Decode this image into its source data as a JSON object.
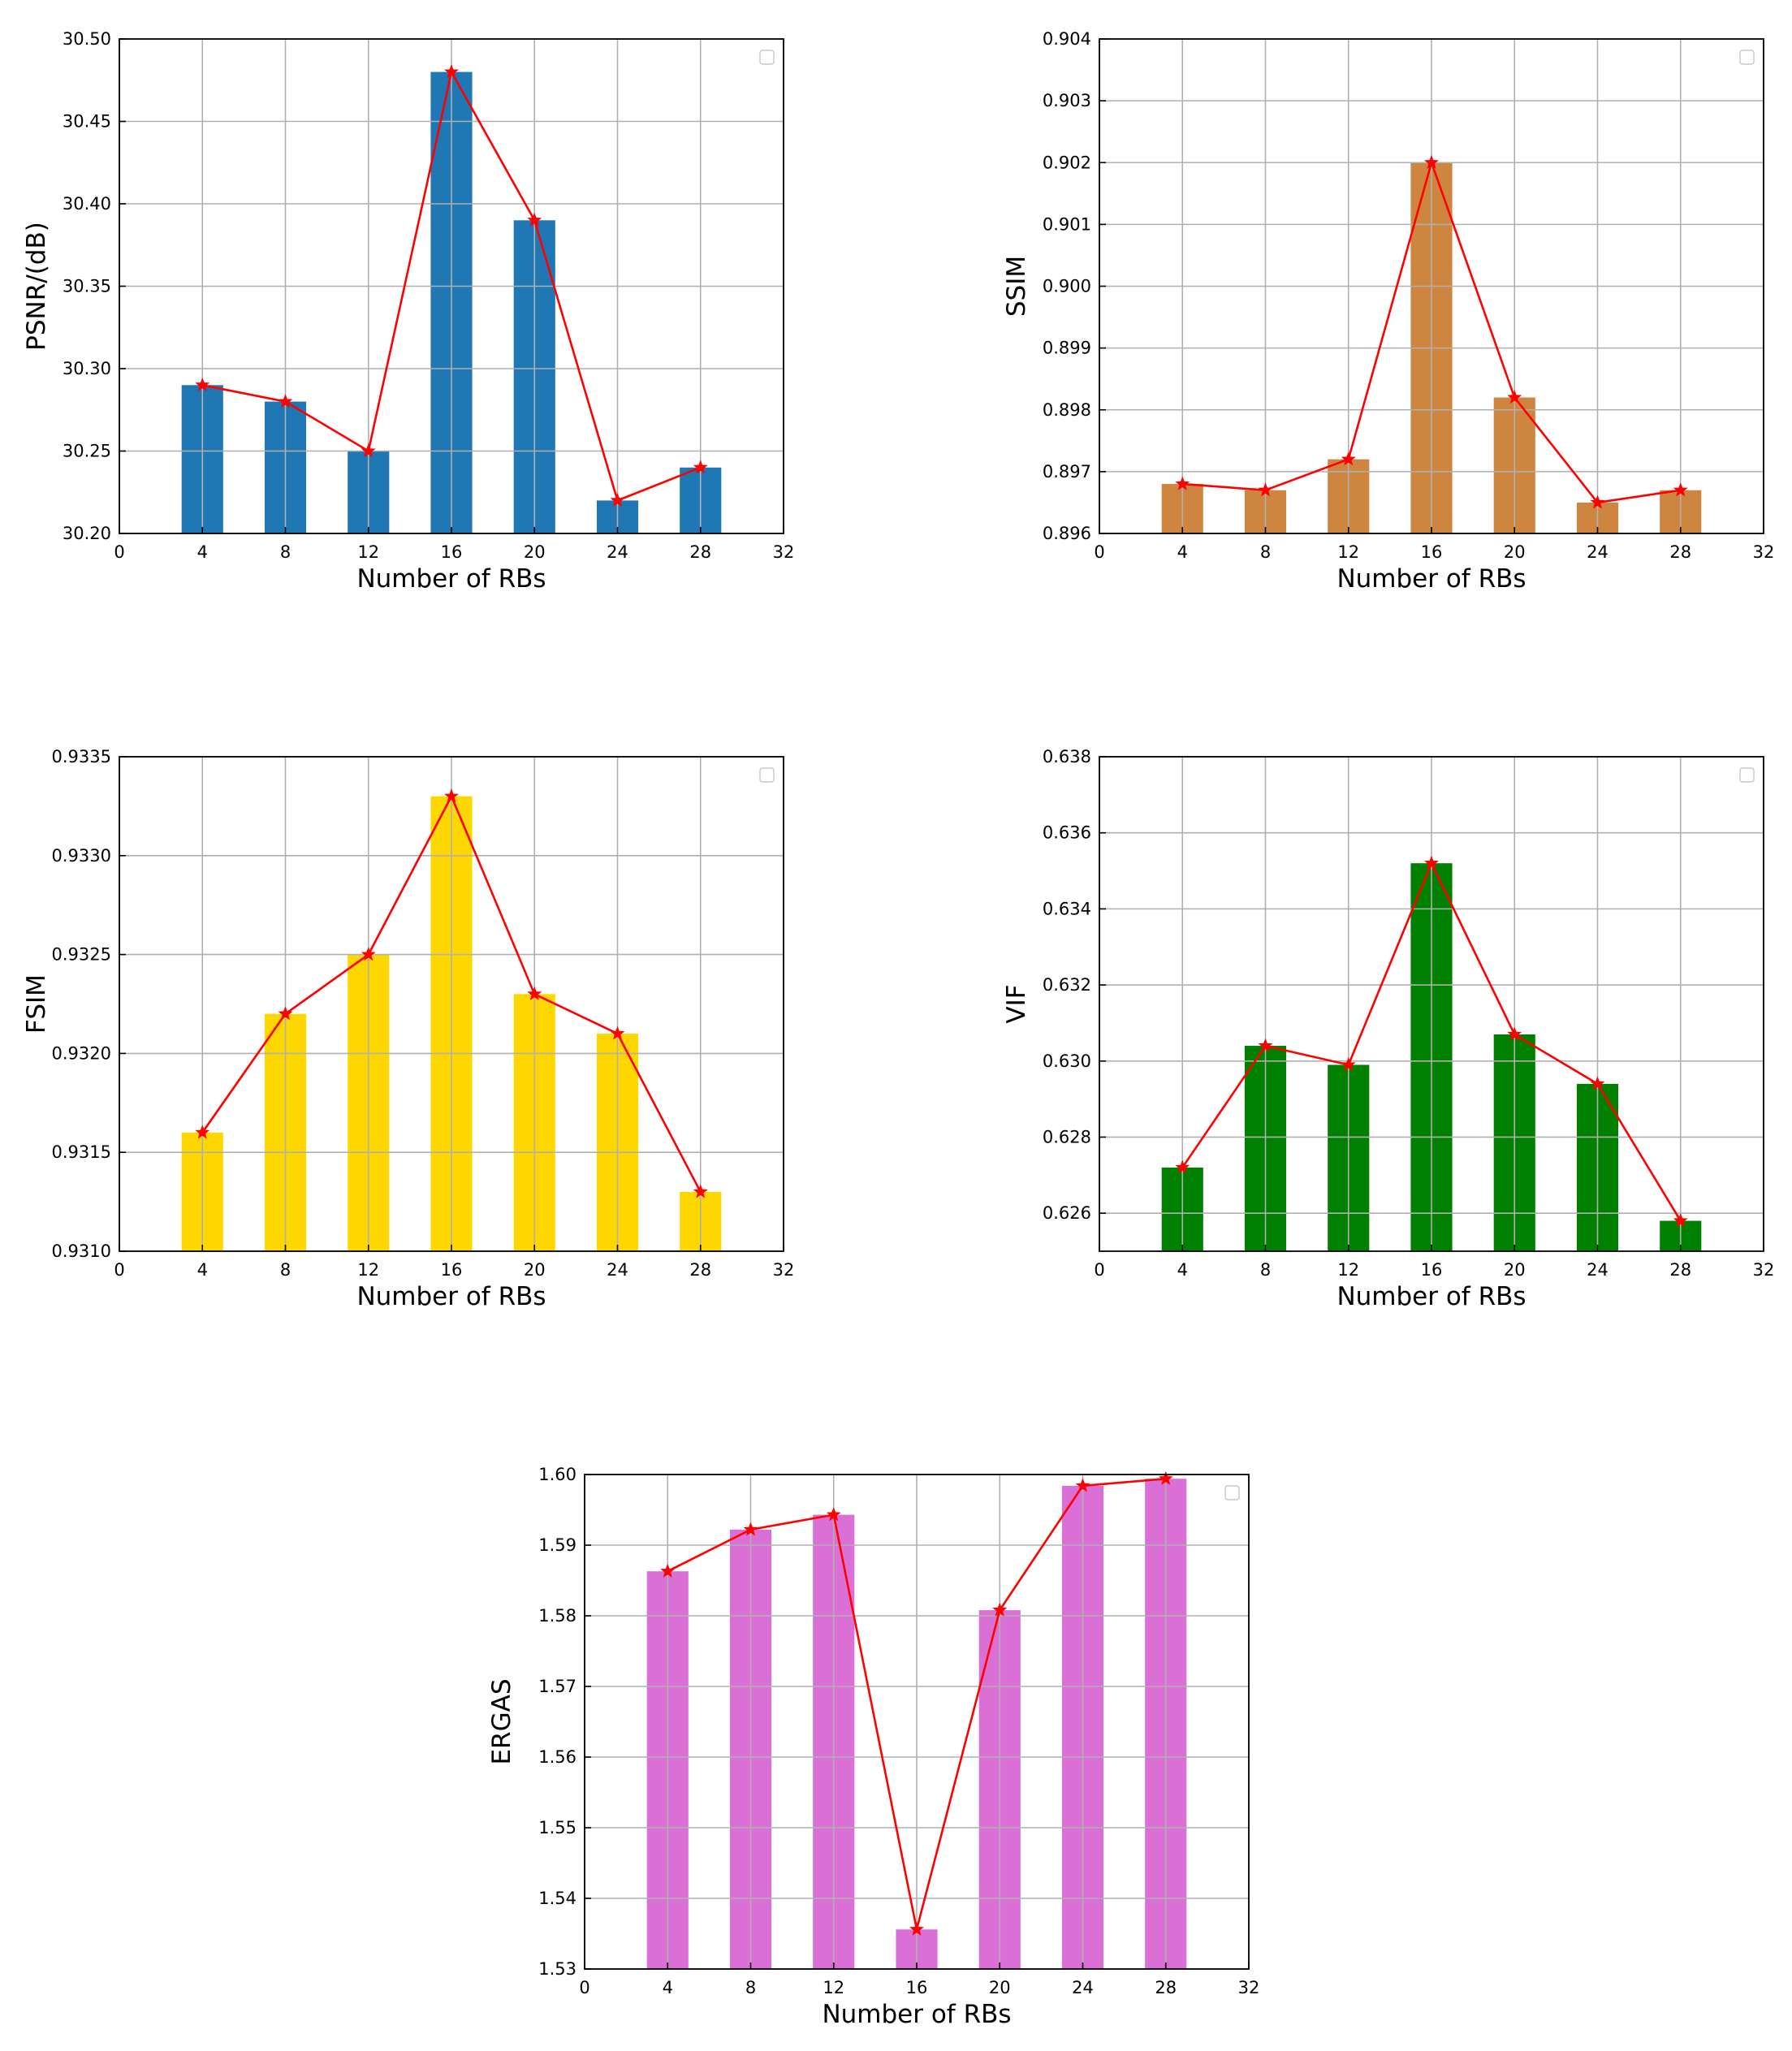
{
  "chart_data": [
    {
      "type": "bar",
      "x": [
        4,
        8,
        12,
        16,
        20,
        24,
        28
      ],
      "values": [
        30.29,
        30.28,
        30.25,
        30.48,
        30.39,
        30.22,
        30.24
      ],
      "bar_color": "#1f77b4",
      "line_color": "#ff0000",
      "xlabel": "Number of RBs",
      "ylabel": "PSNR/(dB)",
      "xlim": [
        0,
        32
      ],
      "ylim": [
        30.2,
        30.5
      ],
      "xticks": [
        0,
        4,
        8,
        12,
        16,
        20,
        24,
        28,
        32
      ],
      "xtick_labels": [
        "0",
        "4",
        "8",
        "12",
        "16",
        "20",
        "24",
        "28",
        "32"
      ],
      "yticks": [
        30.2,
        30.25,
        30.3,
        30.35,
        30.4,
        30.45,
        30.5
      ],
      "ytick_labels": [
        "30.20",
        "30.25",
        "30.30",
        "30.35",
        "30.40",
        "30.45",
        "30.50"
      ],
      "grid": true,
      "legend": "top-right"
    },
    {
      "type": "bar",
      "x": [
        4,
        8,
        12,
        16,
        20,
        24,
        28
      ],
      "values": [
        0.8968,
        0.8967,
        0.8972,
        0.902,
        0.8982,
        0.8965,
        0.8967
      ],
      "bar_color": "#cd853f",
      "line_color": "#ff0000",
      "xlabel": "Number of RBs",
      "ylabel": "SSIM",
      "xlim": [
        0,
        32
      ],
      "ylim": [
        0.896,
        0.904
      ],
      "xticks": [
        0,
        4,
        8,
        12,
        16,
        20,
        24,
        28,
        32
      ],
      "xtick_labels": [
        "0",
        "4",
        "8",
        "12",
        "16",
        "20",
        "24",
        "28",
        "32"
      ],
      "yticks": [
        0.896,
        0.897,
        0.898,
        0.899,
        0.9,
        0.901,
        0.902,
        0.903,
        0.904
      ],
      "ytick_labels": [
        "0.896",
        "0.897",
        "0.898",
        "0.899",
        "0.900",
        "0.901",
        "0.902",
        "0.903",
        "0.904"
      ],
      "grid": true,
      "legend": "top-right"
    },
    {
      "type": "bar",
      "x": [
        4,
        8,
        12,
        16,
        20,
        24,
        28
      ],
      "values": [
        0.9316,
        0.9322,
        0.9325,
        0.9333,
        0.9323,
        0.9321,
        0.9313
      ],
      "bar_color": "#ffd700",
      "line_color": "#ff0000",
      "xlabel": "Number of RBs",
      "ylabel": "FSIM",
      "xlim": [
        0,
        32
      ],
      "ylim": [
        0.931,
        0.9335
      ],
      "xticks": [
        0,
        4,
        8,
        12,
        16,
        20,
        24,
        28,
        32
      ],
      "xtick_labels": [
        "0",
        "4",
        "8",
        "12",
        "16",
        "20",
        "24",
        "28",
        "32"
      ],
      "yticks": [
        0.931,
        0.9315,
        0.932,
        0.9325,
        0.933,
        0.9335
      ],
      "ytick_labels": [
        "0.9310",
        "0.9315",
        "0.9320",
        "0.9325",
        "0.9330",
        "0.9335"
      ],
      "grid": true,
      "legend": "top-right"
    },
    {
      "type": "bar",
      "x": [
        4,
        8,
        12,
        16,
        20,
        24,
        28
      ],
      "values": [
        0.6272,
        0.6304,
        0.6299,
        0.6352,
        0.6307,
        0.6294,
        0.6258
      ],
      "bar_color": "#008000",
      "line_color": "#ff0000",
      "xlabel": "Number of RBs",
      "ylabel": "VIF",
      "xlim": [
        0,
        32
      ],
      "ylim": [
        0.625,
        0.638
      ],
      "xticks": [
        0,
        4,
        8,
        12,
        16,
        20,
        24,
        28,
        32
      ],
      "xtick_labels": [
        "0",
        "4",
        "8",
        "12",
        "16",
        "20",
        "24",
        "28",
        "32"
      ],
      "yticks": [
        0.626,
        0.628,
        0.63,
        0.632,
        0.634,
        0.636,
        0.638
      ],
      "ytick_labels": [
        "0.626",
        "0.628",
        "0.630",
        "0.632",
        "0.634",
        "0.636",
        "0.638"
      ],
      "grid": true,
      "legend": "top-right"
    },
    {
      "type": "bar",
      "x": [
        4,
        8,
        12,
        16,
        20,
        24,
        28
      ],
      "values": [
        1.5863,
        1.5922,
        1.5943,
        1.5356,
        1.5808,
        1.5984,
        1.5994
      ],
      "bar_color": "#da70d6",
      "line_color": "#ff0000",
      "xlabel": "Number of RBs",
      "ylabel": "ERGAS",
      "xlim": [
        0,
        32
      ],
      "ylim": [
        1.53,
        1.6
      ],
      "xticks": [
        0,
        4,
        8,
        12,
        16,
        20,
        24,
        28,
        32
      ],
      "xtick_labels": [
        "0",
        "4",
        "8",
        "12",
        "16",
        "20",
        "24",
        "28",
        "32"
      ],
      "yticks": [
        1.53,
        1.54,
        1.55,
        1.56,
        1.57,
        1.58,
        1.59,
        1.6
      ],
      "ytick_labels": [
        "1.53",
        "1.54",
        "1.55",
        "1.56",
        "1.57",
        "1.58",
        "1.59",
        "1.60"
      ],
      "grid": true,
      "legend": "top-right"
    }
  ]
}
